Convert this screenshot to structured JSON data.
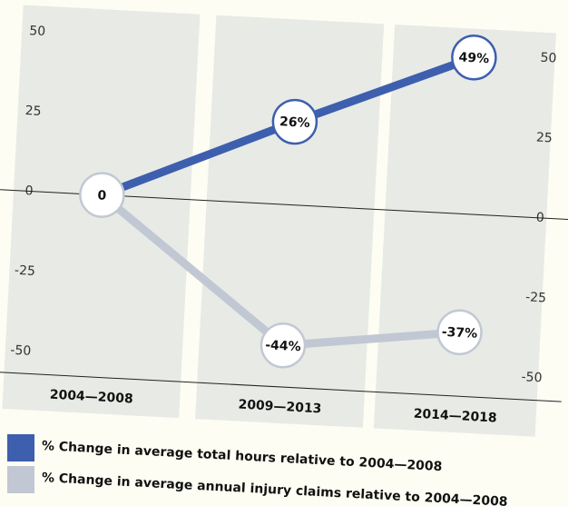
{
  "chart_data": {
    "type": "line",
    "categories": [
      "2004—2008",
      "2009—2013",
      "2014—2018"
    ],
    "series": [
      {
        "name": "% Change in average total hours relative to 2004—2008",
        "color": "#3d5fae",
        "values": [
          0,
          26,
          49
        ],
        "value_labels": [
          "0",
          "26%",
          "49%"
        ]
      },
      {
        "name": "% Change in average  annual injury claims relative to 2004—2008",
        "color": "#c1c8d3",
        "values": [
          0,
          -44,
          -37
        ],
        "value_labels": [
          null,
          "-44%",
          "-37%"
        ]
      }
    ],
    "ylim": [
      -57,
      58
    ],
    "yticks": [
      50,
      25,
      0,
      -25,
      -50
    ]
  }
}
